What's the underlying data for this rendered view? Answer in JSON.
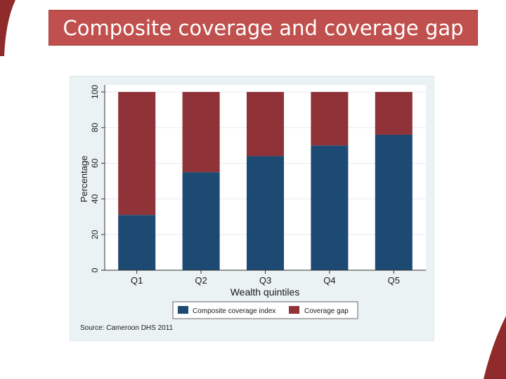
{
  "slide": {
    "title": "Composite coverage and coverage gap",
    "accent_color": "#c0504d"
  },
  "chart_data": {
    "type": "bar",
    "stacked": true,
    "title": "",
    "xlabel": "Wealth quintiles",
    "ylabel": "Percentage",
    "ylim": [
      0,
      100
    ],
    "yticks": [
      0,
      20,
      40,
      60,
      80,
      100
    ],
    "categories": [
      "Q1",
      "Q2",
      "Q3",
      "Q4",
      "Q5"
    ],
    "series": [
      {
        "name": "Composite coverage index",
        "color": "#1c4a72",
        "values": [
          31,
          55,
          64,
          70,
          76
        ]
      },
      {
        "name": "Coverage gap",
        "color": "#8f3339",
        "values": [
          69,
          45,
          36,
          30,
          24
        ]
      }
    ],
    "legend_position": "bottom",
    "grid": true,
    "source": "Source: Cameroon DHS 2011"
  }
}
